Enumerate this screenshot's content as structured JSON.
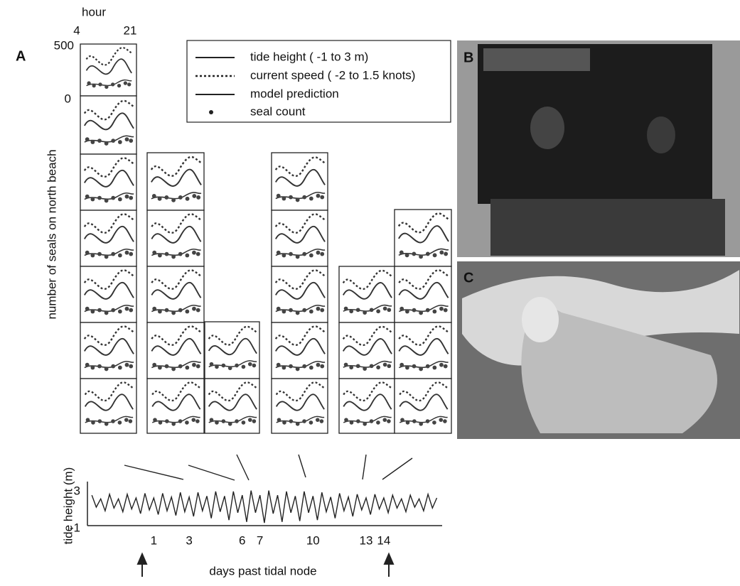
{
  "header": {
    "hour_label": "hour",
    "hour_start": 4,
    "hour_end": 21,
    "count_top": 500,
    "count_zero": 0
  },
  "panel_labels": [
    "A",
    "B",
    "C"
  ],
  "legend": [
    "tide height ( -1 to 3 m)",
    "current speed ( -2 to 1.5 knots)",
    "model prediction",
    "seal count"
  ],
  "y_label": "number of seals on north beach",
  "chart_data": {
    "type": "line",
    "xlabel": "days past tidal node",
    "ylabel": "tide height (m)",
    "color": "#222222",
    "x": [
      -2.5,
      -2.25,
      -2,
      -1.75,
      -1.5,
      -1.25,
      -1,
      -0.75,
      -0.5,
      -0.25,
      0,
      0.25,
      0.5,
      0.75,
      1,
      1.25,
      1.5,
      1.75,
      2,
      2.25,
      2.5,
      2.75,
      3,
      3.25,
      3.5,
      3.75,
      4,
      4.25,
      4.5,
      4.75,
      5,
      5.25,
      5.5,
      5.75,
      6,
      6.25,
      6.5,
      6.75,
      7,
      7.25,
      7.5,
      7.75,
      8,
      8.25,
      8.5,
      8.75,
      9,
      9.25,
      9.5,
      9.75,
      10,
      10.25,
      10.5,
      10.75,
      11,
      11.25,
      11.5,
      11.75,
      12,
      12.25,
      12.5,
      12.75,
      13,
      13.25,
      13.5,
      13.75,
      14,
      14.25,
      14.5,
      14.75,
      15,
      15.25,
      15.5,
      15.75,
      16,
      16.25,
      16.5,
      16.75,
      17
    ],
    "values": [
      2.3,
      1.0,
      1.9,
      0.6,
      2.4,
      0.9,
      1.9,
      0.5,
      2.4,
      0.8,
      2.0,
      0.3,
      2.5,
      0.7,
      2.0,
      0.2,
      2.5,
      0.6,
      2.1,
      0.1,
      2.6,
      0.5,
      2.1,
      0.0,
      2.6,
      0.6,
      2.2,
      -0.2,
      2.7,
      0.5,
      2.2,
      -0.4,
      2.7,
      0.4,
      2.3,
      -0.6,
      2.8,
      0.4,
      2.3,
      -0.7,
      2.8,
      0.3,
      2.3,
      -0.6,
      2.7,
      0.4,
      2.2,
      -0.5,
      2.7,
      0.4,
      2.2,
      -0.4,
      2.6,
      0.5,
      2.1,
      -0.2,
      2.5,
      0.6,
      2.1,
      0.0,
      2.4,
      0.7,
      2.0,
      0.2,
      2.4,
      0.8,
      2.0,
      0.4,
      2.3,
      0.9,
      1.9,
      0.5,
      2.3,
      1.0,
      1.9,
      0.6,
      2.4,
      0.9,
      2.0
    ],
    "xlim": [
      -2.75,
      17.3
    ],
    "xticks": [
      1,
      3,
      6,
      7,
      10,
      13,
      14
    ],
    "ylim": [
      -1,
      3
    ],
    "yticks": [
      -1,
      3
    ]
  }
}
